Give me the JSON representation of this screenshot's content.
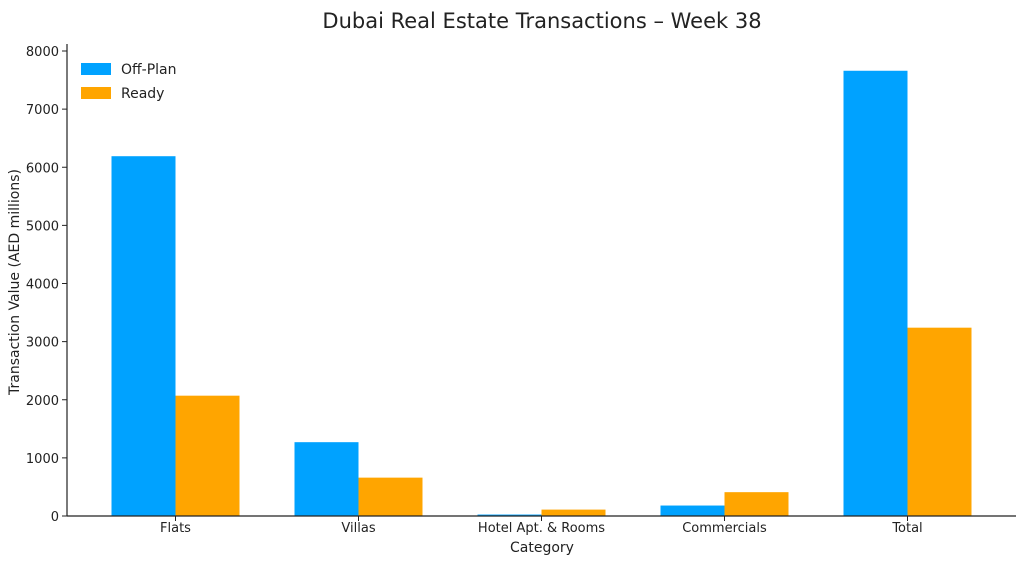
{
  "chart_data": {
    "type": "bar",
    "title": "Dubai Real Estate Transactions – Week 38",
    "xlabel": "Category",
    "ylabel": "Transaction Value (AED millions)",
    "categories": [
      "Flats",
      "Villas",
      "Hotel Apt. & Rooms",
      "Commercials",
      "Total"
    ],
    "series": [
      {
        "name": "Off-Plan",
        "color": "#00a2ff",
        "values": [
          6190,
          1270,
          25,
          180,
          7660
        ]
      },
      {
        "name": "Ready",
        "color": "#ffa500",
        "values": [
          2070,
          660,
          110,
          410,
          3240
        ]
      }
    ],
    "ylim": [
      0,
      8000
    ],
    "yticks": [
      0,
      1000,
      2000,
      3000,
      4000,
      5000,
      6000,
      7000,
      8000
    ],
    "grid": false,
    "legend_position": "top-left"
  }
}
